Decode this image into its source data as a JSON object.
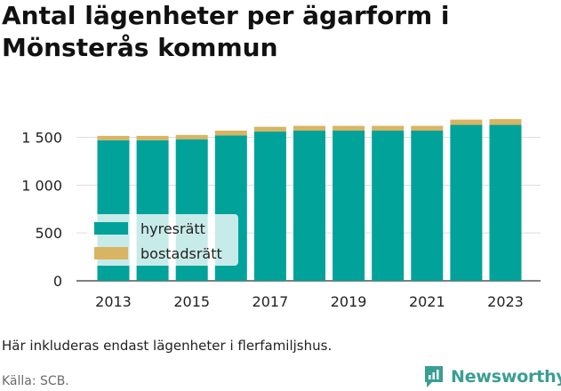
{
  "title": "Antal lägenheter per ägarform i Mönsterås kommun",
  "note": "Här inkluderas endast lägenheter i flerfamiljshus.",
  "source": "Källa: SCB.",
  "brand": "Newsworthy",
  "colors": {
    "hyresratt": "#00a29a",
    "bostadsratt": "#d9b462",
    "brand": "#3a9e93"
  },
  "chart_data": {
    "type": "bar",
    "stacked": true,
    "categories": [
      2013,
      2014,
      2015,
      2016,
      2017,
      2018,
      2019,
      2020,
      2021,
      2022,
      2023
    ],
    "x_tick_labels": [
      "2013",
      "2015",
      "2017",
      "2019",
      "2021",
      "2023"
    ],
    "series": [
      {
        "name": "hyresrätt",
        "color": "#00a29a",
        "values": [
          1470,
          1470,
          1480,
          1520,
          1560,
          1570,
          1570,
          1570,
          1570,
          1630,
          1630
        ]
      },
      {
        "name": "bostadsrätt",
        "color": "#d9b462",
        "values": [
          45,
          45,
          45,
          50,
          50,
          50,
          50,
          50,
          50,
          55,
          60
        ]
      }
    ],
    "ylim": [
      0,
      1700
    ],
    "y_ticks": [
      0,
      500,
      1000,
      1500
    ],
    "y_tick_labels": [
      "0",
      "500",
      "1 000",
      "1 500"
    ],
    "grid": true,
    "legend_position": "bottom-left"
  }
}
